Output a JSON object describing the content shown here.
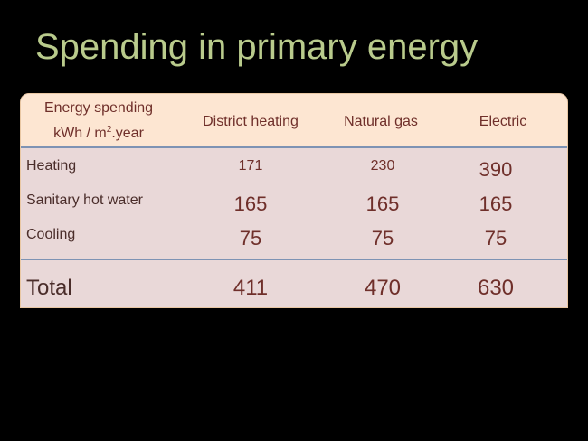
{
  "slide": {
    "title": "Spending in primary energy"
  },
  "table": {
    "corner": {
      "line1": "Energy spending",
      "line2_prefix": "kWh / m",
      "line2_sup": "2",
      "line2_suffix": ".year"
    },
    "columns": [
      "District heating",
      "Natural gas",
      "Electric"
    ],
    "rows": [
      {
        "label": "Heating",
        "values": [
          "171",
          "230",
          "390"
        ]
      },
      {
        "label": "Sanitary hot water",
        "values": [
          "165",
          "165",
          "165"
        ]
      },
      {
        "label": "Cooling",
        "values": [
          "75",
          "75",
          "75"
        ]
      }
    ],
    "total": {
      "label": "Total",
      "values": [
        "411",
        "470",
        "630"
      ]
    }
  },
  "colors": {
    "background": "#000000",
    "title": "#b9cb8c",
    "header_fill": "#fde6d2",
    "body_fill": "#e9d8d8",
    "text": "#6f2f2a",
    "divider": "#7e93b4"
  }
}
